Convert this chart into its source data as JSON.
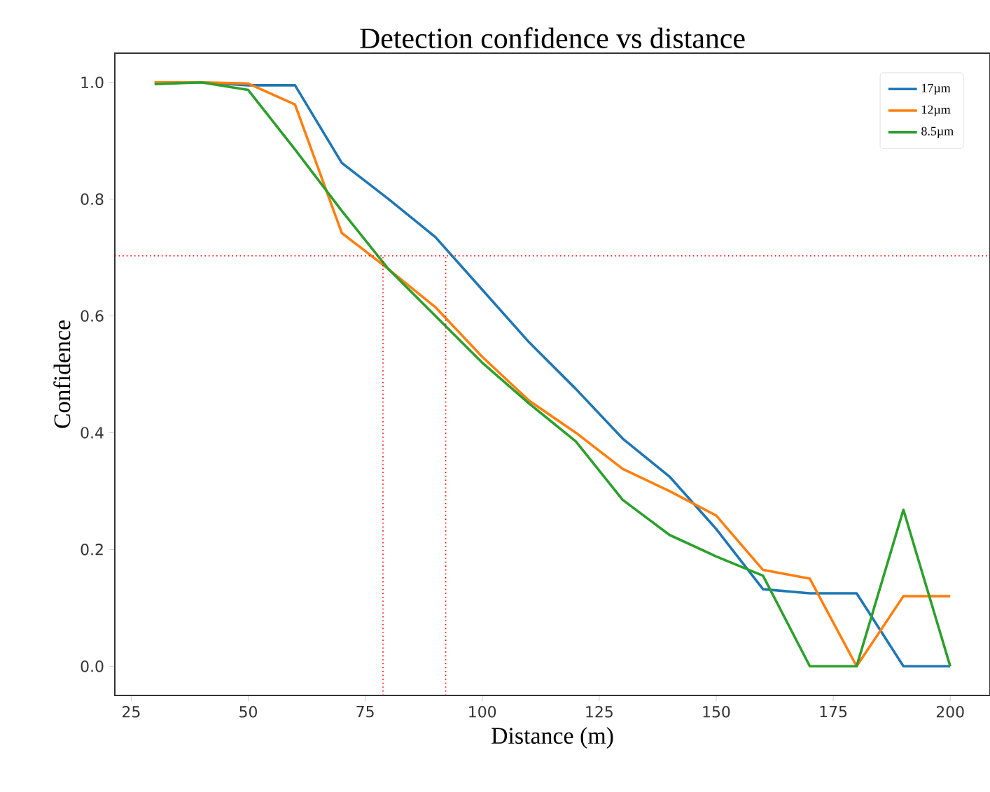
{
  "chart_data": {
    "type": "line",
    "title": "Detection confidence vs distance",
    "xlabel": "Distance (m)",
    "ylabel": "Confidence",
    "x": [
      30,
      40,
      50,
      60,
      70,
      80,
      90,
      100,
      110,
      120,
      130,
      140,
      150,
      160,
      170,
      180,
      190,
      200
    ],
    "series": [
      {
        "name": "17µm",
        "color": "#1f77b4",
        "values": [
          1.0,
          1.0,
          0.995,
          0.995,
          0.862,
          0.8,
          0.735,
          0.645,
          0.555,
          0.475,
          0.39,
          0.325,
          0.235,
          0.132,
          0.125,
          0.125,
          0.0,
          0.0
        ]
      },
      {
        "name": "12µm",
        "color": "#ff7f0e",
        "values": [
          1.0,
          1.0,
          0.998,
          0.962,
          0.742,
          0.68,
          0.615,
          0.53,
          0.455,
          0.4,
          0.338,
          0.3,
          0.258,
          0.165,
          0.15,
          0.0,
          0.12,
          0.12
        ]
      },
      {
        "name": "8.5µm",
        "color": "#2ca02c",
        "values": [
          0.997,
          1.0,
          0.987,
          0.885,
          0.78,
          0.68,
          0.6,
          0.52,
          0.45,
          0.385,
          0.285,
          0.225,
          0.188,
          0.155,
          0.0,
          0.0,
          0.268,
          0.0
        ]
      }
    ],
    "xlim": [
      21.5,
      208.5
    ],
    "xticks": [
      25,
      50,
      75,
      100,
      125,
      150,
      175,
      200
    ],
    "ylim": [
      -0.05,
      1.05
    ],
    "yticks": [
      {
        "value": 0,
        "label": "0.0"
      },
      {
        "value": 0.2,
        "label": "0.2"
      },
      {
        "value": 0.4,
        "label": "0.4"
      },
      {
        "value": 0.6,
        "label": "0.6"
      },
      {
        "value": 0.8,
        "label": "0.8"
      },
      {
        "value": 1,
        "label": "1.0"
      }
    ],
    "ref_lines": [
      {
        "axis": "y",
        "value": 0.703,
        "color": "#ff0000",
        "line_style": "dotted"
      },
      {
        "axis": "x",
        "value": 78.8,
        "color": "#ff0000",
        "line_style": "dotted"
      },
      {
        "axis": "x",
        "value": 92.2,
        "color": "#ff0000",
        "line_style": "dotted"
      }
    ],
    "legend": "top right",
    "grid": false,
    "marker": "none",
    "line_style": "solid"
  }
}
